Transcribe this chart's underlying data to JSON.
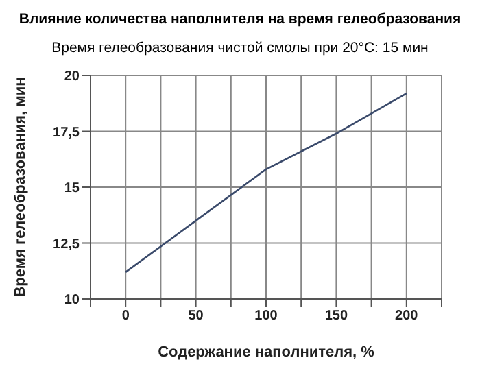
{
  "chart_data": {
    "type": "line",
    "title": "Влияние количества наполнителя на время гелеобразования",
    "subtitle": "Время гелеобразования чистой смолы при 20°C: 15 мин",
    "xlabel": "Содержание наполнителя, %",
    "ylabel": "Время гелеобразования, мин",
    "x": [
      0,
      50,
      100,
      150,
      200
    ],
    "series": [
      {
        "color": "#3a4a6b",
        "values": [
          11.2,
          13.5,
          15.8,
          17.4,
          19.2
        ]
      }
    ],
    "xlim": [
      -25,
      225
    ],
    "xticks": [
      {
        "value": -25,
        "label": null
      },
      0,
      {
        "value": 25,
        "label": null
      },
      50,
      {
        "value": 75,
        "label": null
      },
      100,
      {
        "value": 125,
        "label": null
      },
      150,
      {
        "value": 175,
        "label": null
      },
      200,
      {
        "value": 225,
        "label": null
      }
    ],
    "ylim": [
      10,
      20
    ],
    "yticks": [
      10,
      {
        "value": 12.5,
        "label": "12,5"
      },
      15,
      {
        "value": 17.5,
        "label": "17,5"
      },
      20
    ],
    "grid": true,
    "marker": "none",
    "line_style": "solid",
    "legend": false
  }
}
